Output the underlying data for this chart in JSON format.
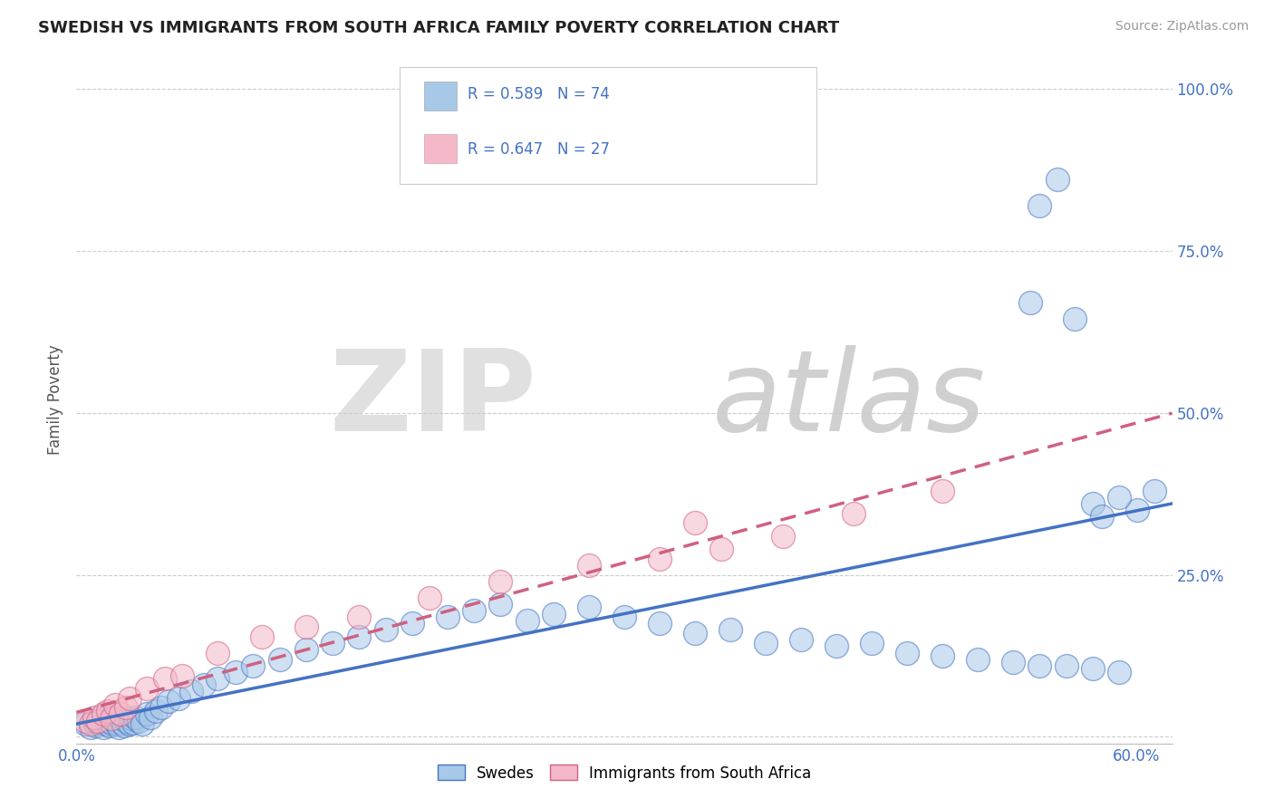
{
  "title": "SWEDISH VS IMMIGRANTS FROM SOUTH AFRICA FAMILY POVERTY CORRELATION CHART",
  "source": "Source: ZipAtlas.com",
  "ylabel": "Family Poverty",
  "xlim": [
    0.0,
    0.62
  ],
  "ylim": [
    -0.01,
    1.05
  ],
  "xticks": [
    0.0,
    0.1,
    0.2,
    0.3,
    0.4,
    0.5,
    0.6
  ],
  "xticklabels": [
    "0.0%",
    "",
    "",
    "",
    "",
    "",
    "60.0%"
  ],
  "ytick_positions": [
    0.0,
    0.25,
    0.5,
    0.75,
    1.0
  ],
  "ytick_labels": [
    "",
    "25.0%",
    "50.0%",
    "75.0%",
    "100.0%"
  ],
  "R_swedes": 0.589,
  "N_swedes": 74,
  "R_immigrants": 0.647,
  "N_immigrants": 27,
  "color_swedes": "#a8c8e8",
  "color_immigrants": "#f4b8c8",
  "line_color_swedes": "#4472c4",
  "line_color_immigrants": "#d06080",
  "background_color": "#ffffff",
  "grid_color": "#cccccc",
  "swedes_x": [
    0.005,
    0.008,
    0.01,
    0.011,
    0.012,
    0.013,
    0.015,
    0.016,
    0.017,
    0.018,
    0.019,
    0.02,
    0.021,
    0.022,
    0.023,
    0.024,
    0.025,
    0.026,
    0.027,
    0.028,
    0.03,
    0.031,
    0.032,
    0.033,
    0.035,
    0.037,
    0.04,
    0.042,
    0.045,
    0.048,
    0.052,
    0.058,
    0.065,
    0.072,
    0.08,
    0.09,
    0.1,
    0.115,
    0.13,
    0.145,
    0.16,
    0.175,
    0.19,
    0.21,
    0.225,
    0.24,
    0.255,
    0.27,
    0.29,
    0.31,
    0.33,
    0.35,
    0.37,
    0.39,
    0.41,
    0.43,
    0.45,
    0.47,
    0.49,
    0.51,
    0.53,
    0.545,
    0.56,
    0.575,
    0.59,
    0.6,
    0.61,
    0.54,
    0.545,
    0.555,
    0.565,
    0.575,
    0.58,
    0.59
  ],
  "swedes_y": [
    0.02,
    0.015,
    0.025,
    0.018,
    0.022,
    0.03,
    0.015,
    0.028,
    0.02,
    0.025,
    0.018,
    0.022,
    0.03,
    0.025,
    0.02,
    0.015,
    0.028,
    0.022,
    0.018,
    0.025,
    0.02,
    0.028,
    0.022,
    0.03,
    0.025,
    0.02,
    0.035,
    0.03,
    0.04,
    0.045,
    0.055,
    0.06,
    0.07,
    0.08,
    0.09,
    0.1,
    0.11,
    0.12,
    0.135,
    0.145,
    0.155,
    0.165,
    0.175,
    0.185,
    0.195,
    0.205,
    0.18,
    0.19,
    0.2,
    0.185,
    0.175,
    0.16,
    0.165,
    0.145,
    0.15,
    0.14,
    0.145,
    0.13,
    0.125,
    0.12,
    0.115,
    0.11,
    0.11,
    0.105,
    0.1,
    0.35,
    0.38,
    0.67,
    0.82,
    0.86,
    0.645,
    0.36,
    0.34,
    0.37
  ],
  "immigrants_x": [
    0.005,
    0.008,
    0.01,
    0.012,
    0.015,
    0.018,
    0.02,
    0.022,
    0.025,
    0.028,
    0.03,
    0.04,
    0.05,
    0.06,
    0.08,
    0.105,
    0.13,
    0.16,
    0.2,
    0.24,
    0.29,
    0.33,
    0.365,
    0.4,
    0.44,
    0.49,
    0.35
  ],
  "immigrants_y": [
    0.025,
    0.02,
    0.03,
    0.025,
    0.035,
    0.04,
    0.028,
    0.05,
    0.035,
    0.045,
    0.06,
    0.075,
    0.09,
    0.095,
    0.13,
    0.155,
    0.17,
    0.185,
    0.215,
    0.24,
    0.265,
    0.275,
    0.29,
    0.31,
    0.345,
    0.38,
    0.33
  ]
}
